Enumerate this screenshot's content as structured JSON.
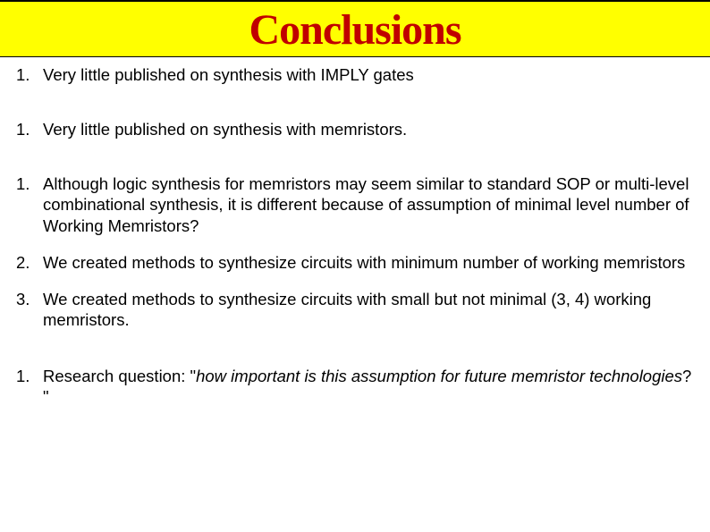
{
  "title": "Conclusions",
  "title_color": "#c00000",
  "title_bg": "#ffff00",
  "title_fontsize": 48,
  "body_fontsize": 18.5,
  "text_color": "#000000",
  "bg_color": "#ffffff",
  "items": [
    {
      "num": "1.",
      "text": "Very little published on synthesis with IMPLY gates"
    },
    {
      "num": "1.",
      "text": "Very little published on synthesis with memristors."
    },
    {
      "num": "1.",
      "text": "Although logic synthesis for memristors may seem similar to standard SOP or multi-level combinational synthesis, it is different because of assumption of minimal level number of Working Memristors?"
    },
    {
      "num": "2.",
      "text": "We created methods to synthesize circuits with minimum number of working memristors"
    },
    {
      "num": "3.",
      "text": "We created methods to synthesize circuits with small but not minimal (3, 4) working memristors."
    }
  ],
  "research": {
    "num": "1.",
    "prefix": "Research question: \"",
    "italic": "how important is this assumption for future memristor technologies",
    "suffix": "? \""
  }
}
